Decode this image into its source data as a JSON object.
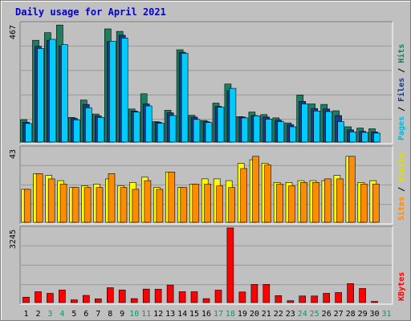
{
  "chart_data": {
    "type": "bar",
    "title": "Daily usage for April 2021",
    "days": [
      "1",
      "2",
      "3",
      "4",
      "5",
      "6",
      "7",
      "8",
      "9",
      "10",
      "11",
      "12",
      "13",
      "14",
      "15",
      "16",
      "17",
      "18",
      "19",
      "20",
      "21",
      "22",
      "23",
      "24",
      "25",
      "26",
      "27",
      "28",
      "29",
      "30",
      "31"
    ],
    "weekend_days": [
      "3",
      "4",
      "10",
      "11",
      "17",
      "18",
      "24",
      "25",
      "31"
    ],
    "panels": [
      {
        "id": "hits-files-pages",
        "max_label": "467",
        "max": 467,
        "series": [
          {
            "name": "Hits",
            "color": "#1c8060",
            "values": [
              88,
              400,
              430,
              460,
              97,
              165,
              110,
              445,
              435,
              130,
              190,
              80,
              125,
              363,
              105,
              85,
              153,
              228,
              100,
              118,
              108,
              95,
              75,
              185,
              150,
              148,
              123,
              60,
              55,
              52,
              0
            ]
          },
          {
            "name": "Files",
            "color": "#1c3a8a",
            "values": [
              78,
              376,
              400,
              378,
              93,
              148,
              103,
              395,
              420,
              122,
              150,
              78,
              115,
              353,
              98,
              80,
              140,
              202,
              98,
              104,
              98,
              86,
              68,
              160,
              132,
              130,
              104,
              48,
              42,
              40,
              0
            ]
          },
          {
            "name": "Pages",
            "color": "#00ccff",
            "values": [
              73,
              368,
              404,
              383,
              87,
              135,
              97,
              396,
              409,
              118,
              142,
              74,
              104,
              349,
              89,
              77,
              137,
              211,
              95,
              103,
              90,
              80,
              60,
              150,
              122,
              120,
              80,
              40,
              38,
              35,
              0
            ]
          }
        ],
        "label_colors": {
          "Pages": "#00b8e0",
          "Files": "#1c3a8a",
          "Hits": "#1c8060"
        }
      },
      {
        "id": "visits-sites",
        "max_label": "43",
        "max": 43,
        "series": [
          {
            "name": "Visits",
            "color": "#ffff00",
            "values": [
              19,
              28,
              27,
              24,
              20,
              21,
              22,
              25,
              21,
              23,
              26,
              20,
              29,
              20,
              22,
              25,
              25,
              24,
              34,
              36,
              34,
              23,
              23,
              24,
              24,
              24,
              27,
              38,
              23,
              24,
              0
            ]
          },
          {
            "name": "Sites",
            "color": "#ff8c00",
            "values": [
              19,
              28,
              25,
              22,
              20,
              20,
              20,
              28,
              20,
              19,
              24,
              19,
              29,
              20,
              22,
              22,
              21,
              20,
              31,
              38,
              33,
              22,
              21,
              23,
              23,
              25,
              25,
              38,
              22,
              22,
              0
            ]
          }
        ],
        "label_colors": {
          "Sites": "#ff8c00",
          "Visits": "#e0e000"
        }
      },
      {
        "id": "kbytes",
        "max_label": "3245",
        "max": 3245,
        "series": [
          {
            "name": "KBytes",
            "color": "#ff0000",
            "values": [
              235,
              470,
              400,
              545,
              120,
              310,
              160,
              645,
              545,
              170,
              585,
              580,
              760,
              470,
              470,
              170,
              540,
              3245,
              460,
              790,
              790,
              300,
              80,
              285,
              285,
              400,
              435,
              825,
              610,
              50,
              0
            ]
          }
        ],
        "label_colors": {
          "KBytes": "#ff0000"
        }
      }
    ]
  },
  "colors": {
    "title": "#0000cc",
    "plot_bg": "#c0c0c0",
    "grid": "#999999",
    "weekday_label": "#000000",
    "weekend_label": "#00a060"
  }
}
